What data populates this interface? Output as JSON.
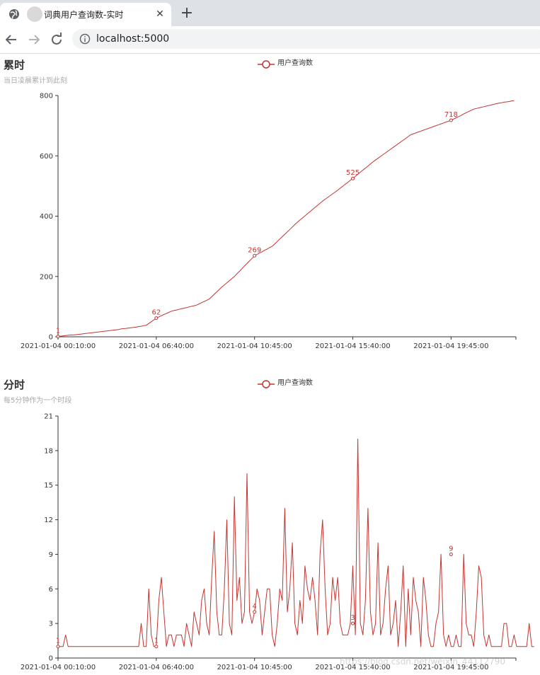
{
  "browser": {
    "tab_title": "词典用户查询数-实时",
    "tab_close": "✕",
    "new_tab": "+",
    "url": "localhost:5000"
  },
  "colors": {
    "series": "#c23531",
    "axis": "#333333",
    "subtitle": "#aaaaaa"
  },
  "watermark": "https://blog.csdn.net/weixin_44112790",
  "chart_data": [
    {
      "type": "line",
      "title": "累时",
      "subtitle": "当日凌晨累计到此刻",
      "legend": {
        "label": "用户查询数",
        "position": "top-center"
      },
      "x_tick_labels": [
        "2021-01-04 00:10:00",
        "2021-01-04 06:40:00",
        "2021-01-04 10:45:00",
        "2021-01-04 15:40:00",
        "2021-01-04 19:45:00"
      ],
      "x_tick_indices": [
        0,
        39,
        78,
        117,
        156
      ],
      "n_points": 182,
      "ylim": [
        0,
        800
      ],
      "y_ticks": [
        0,
        200,
        400,
        600,
        800
      ],
      "grid": false,
      "series": [
        {
          "name": "用户查询数",
          "keypoints": [
            [
              0,
              1
            ],
            [
              10,
              10
            ],
            [
              20,
              20
            ],
            [
              30,
              31
            ],
            [
              35,
              38
            ],
            [
              39,
              62
            ],
            [
              45,
              85
            ],
            [
              55,
              105
            ],
            [
              60,
              125
            ],
            [
              65,
              165
            ],
            [
              70,
              200
            ],
            [
              78,
              269
            ],
            [
              85,
              300
            ],
            [
              95,
              380
            ],
            [
              105,
              450
            ],
            [
              110,
              480
            ],
            [
              117,
              525
            ],
            [
              125,
              580
            ],
            [
              130,
              610
            ],
            [
              140,
              670
            ],
            [
              150,
              700
            ],
            [
              156,
              718
            ],
            [
              165,
              755
            ],
            [
              175,
              775
            ],
            [
              181,
              783
            ]
          ]
        }
      ],
      "data_labels": [
        {
          "index": 0,
          "value": 1
        },
        {
          "index": 39,
          "value": 62
        },
        {
          "index": 78,
          "value": 269
        },
        {
          "index": 117,
          "value": 525
        },
        {
          "index": 156,
          "value": 718
        }
      ]
    },
    {
      "type": "line",
      "title": "分时",
      "subtitle": "每5分钟作为一个时段",
      "legend": {
        "label": "用户查询数",
        "position": "top-center"
      },
      "x_tick_labels": [
        "2021-01-04 00:10:00",
        "2021-01-04 06:40:00",
        "2021-01-04 10:45:00",
        "2021-01-04 15:40:00",
        "2021-01-04 19:45:00"
      ],
      "x_tick_indices": [
        0,
        39,
        78,
        117,
        156
      ],
      "ylim": [
        0,
        21
      ],
      "y_ticks": [
        0,
        3,
        6,
        9,
        12,
        15,
        18,
        21
      ],
      "grid": false,
      "series": [
        {
          "name": "用户查询数",
          "values": [
            1,
            1,
            1,
            2,
            1,
            1,
            1,
            1,
            1,
            1,
            1,
            1,
            1,
            1,
            1,
            1,
            1,
            1,
            1,
            1,
            1,
            1,
            1,
            1,
            1,
            1,
            1,
            1,
            1,
            1,
            1,
            1,
            1,
            3,
            1,
            1,
            6,
            2,
            1,
            1,
            5,
            7,
            4,
            1,
            2,
            2,
            1,
            2,
            2,
            2,
            1,
            3,
            2,
            1,
            4,
            3,
            2,
            5,
            6,
            3,
            2,
            7,
            11,
            4,
            2,
            2,
            6,
            12,
            3,
            2,
            14,
            5,
            7,
            3,
            4,
            16,
            4,
            3,
            4,
            6,
            5,
            2,
            4,
            6,
            6,
            2,
            1,
            3,
            6,
            5,
            13,
            4,
            6,
            10,
            3,
            2,
            5,
            3,
            8,
            6,
            5,
            7,
            5,
            2,
            9,
            12,
            6,
            2,
            3,
            7,
            5,
            7,
            3,
            2,
            2,
            2,
            3,
            8,
            2,
            19,
            3,
            2,
            5,
            13,
            4,
            2,
            3,
            10,
            2,
            3,
            6,
            8,
            2,
            3,
            5,
            1,
            4,
            8,
            1,
            6,
            2,
            7,
            5,
            4,
            1,
            7,
            5,
            2,
            1,
            1,
            3,
            4,
            9,
            2,
            1,
            2,
            1,
            1,
            2,
            1,
            1,
            9,
            3,
            2,
            2,
            1,
            4,
            8,
            7,
            2,
            1,
            2,
            1,
            1,
            1,
            1,
            1,
            3,
            3,
            1,
            1,
            2,
            1,
            1,
            1,
            1,
            1,
            3,
            1,
            1
          ]
        }
      ],
      "data_labels": [
        {
          "index": 0,
          "value": 1
        },
        {
          "index": 39,
          "value": 1
        },
        {
          "index": 78,
          "value": 4
        },
        {
          "index": 117,
          "value": 3
        },
        {
          "index": 156,
          "value": 9
        }
      ]
    }
  ]
}
